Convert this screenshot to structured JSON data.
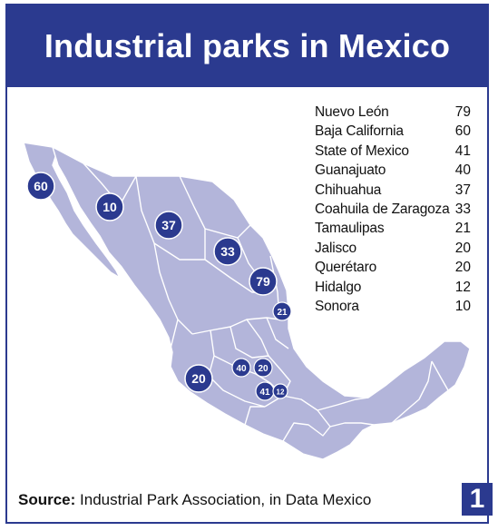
{
  "title": "Industrial parks in Mexico",
  "legend": [
    {
      "state": "Nuevo León",
      "value": "79"
    },
    {
      "state": "Baja California",
      "value": "60"
    },
    {
      "state": "State of Mexico",
      "value": "41"
    },
    {
      "state": "Guanajuato",
      "value": "40"
    },
    {
      "state": "Chihuahua",
      "value": "37"
    },
    {
      "state": "Coahuila de Zaragoza",
      "value": "33"
    },
    {
      "state": "Tamaulipas",
      "value": "21"
    },
    {
      "state": "Jalisco",
      "value": "20"
    },
    {
      "state": "Querétaro",
      "value": "20"
    },
    {
      "state": "Hidalgo",
      "value": "12"
    },
    {
      "state": "Sonora",
      "value": "10"
    }
  ],
  "markers": {
    "baja_california": "60",
    "sonora": "10",
    "chihuahua": "37",
    "coahuila": "33",
    "nuevo_leon": "79",
    "tamaulipas": "21",
    "jalisco": "20",
    "guanajuato": "40",
    "queretaro": "20",
    "state_of_mexico": "41",
    "hidalgo": "12"
  },
  "source": {
    "label": "Source:",
    "text": " Industrial Park Association, in Data Mexico"
  },
  "figure_number": "1",
  "colors": {
    "brand": "#2b3a8f",
    "land": "#b3b5da",
    "borders": "#ffffff"
  }
}
